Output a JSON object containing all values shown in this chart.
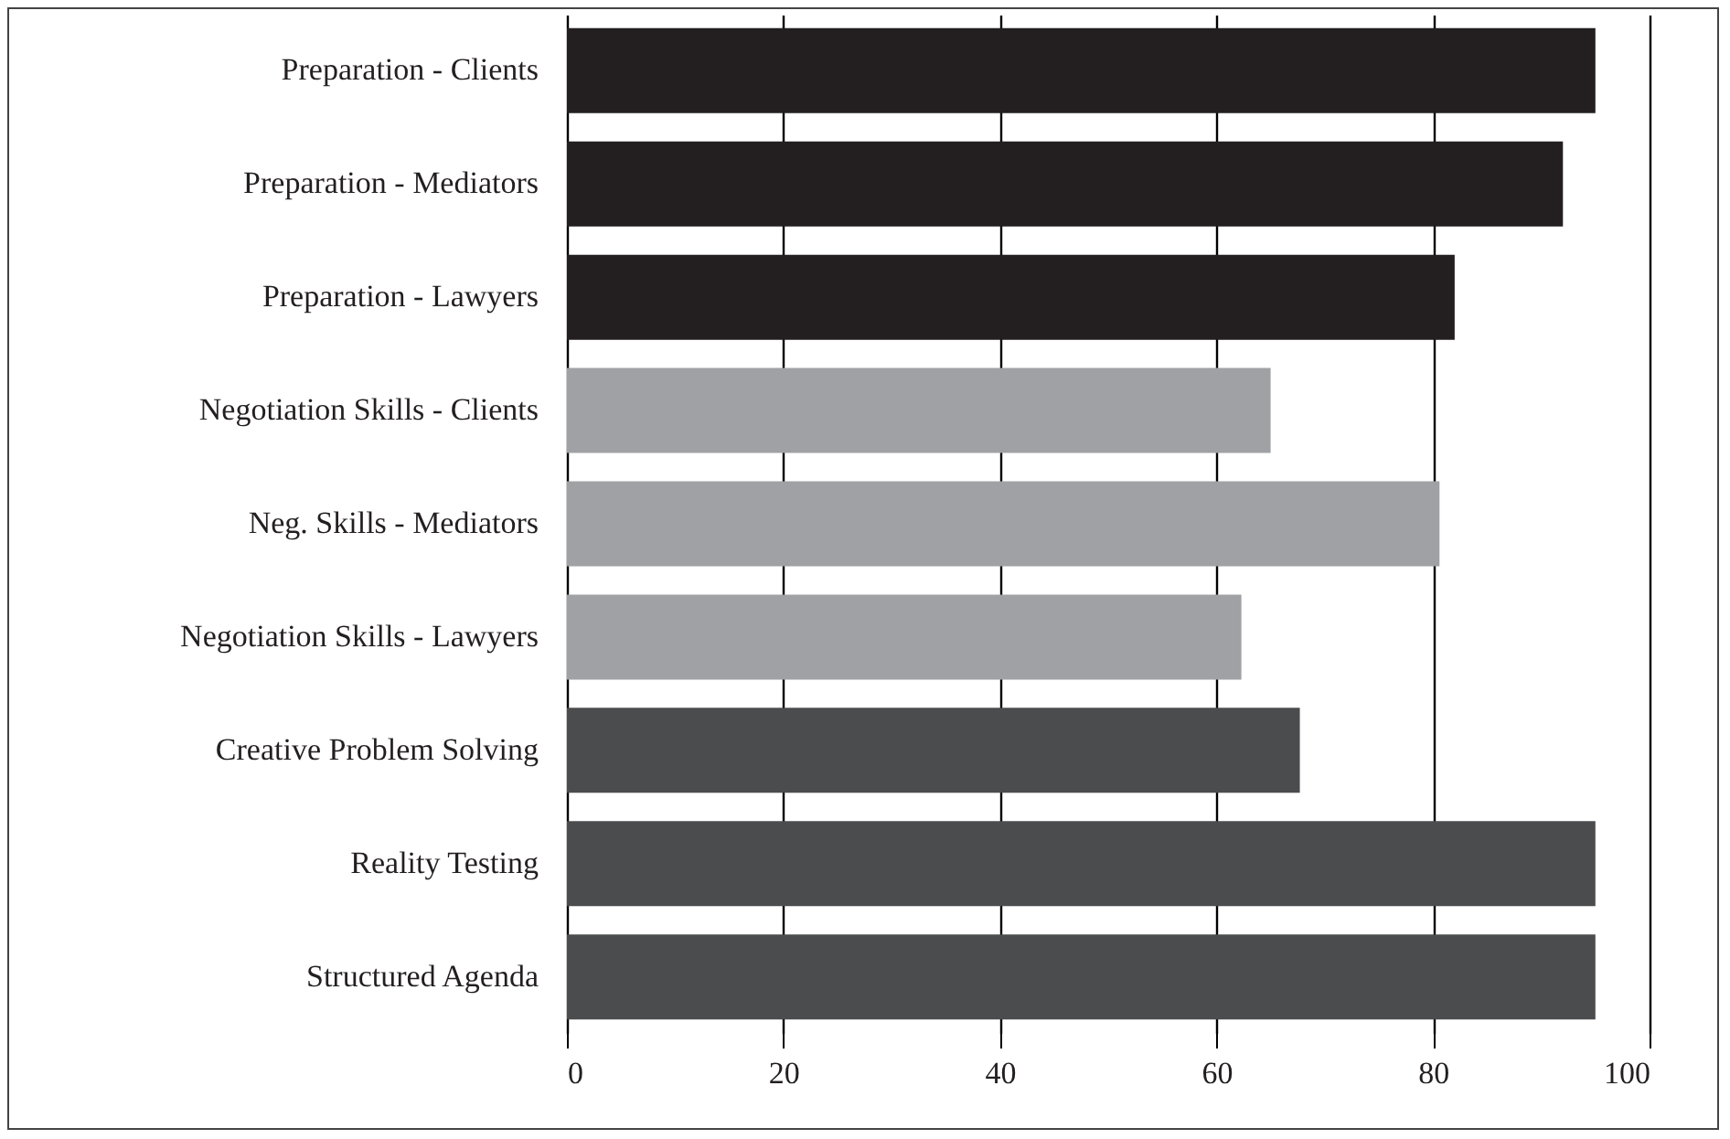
{
  "chart_data": {
    "type": "bar",
    "orientation": "horizontal",
    "categories": [
      "Preparation - Clients",
      "Preparation - Mediators",
      "Preparation - Lawyers",
      "Negotiation Skills - Clients",
      "Neg. Skills - Mediators",
      "Negotiation Skills - Lawyers",
      "Creative Problem Solving",
      "Reality Testing",
      "Structured Agenda"
    ],
    "values": [
      95,
      92,
      82,
      65,
      80.6,
      62.3,
      67.7,
      95,
      95
    ],
    "colors": [
      "#231f20",
      "#231f20",
      "#231f20",
      "#a0a1a4",
      "#a0a1a4",
      "#a0a1a4",
      "#4b4c4e",
      "#4b4c4e",
      "#4b4c4e"
    ],
    "xlim": [
      0,
      100
    ],
    "xticks": [
      0,
      20,
      40,
      60,
      80,
      100
    ],
    "grid": "x",
    "legend": false
  }
}
